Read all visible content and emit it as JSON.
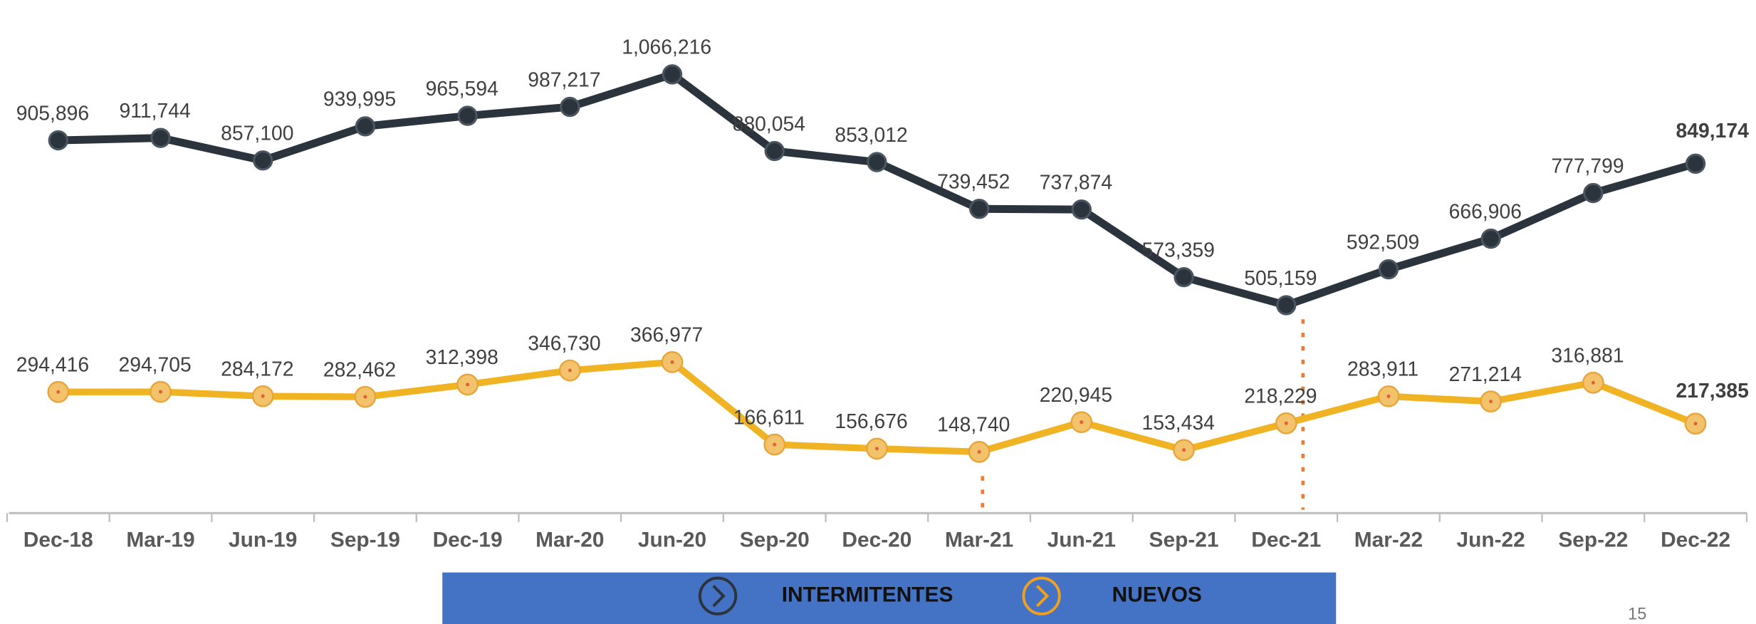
{
  "chart_data": {
    "type": "line",
    "categories": [
      "Dec-18",
      "Mar-19",
      "Jun-19",
      "Sep-19",
      "Dec-19",
      "Mar-20",
      "Jun-20",
      "Sep-20",
      "Dec-20",
      "Mar-21",
      "Jun-21",
      "Sep-21",
      "Dec-21",
      "Mar-22",
      "Jun-22",
      "Sep-22",
      "Dec-22"
    ],
    "series": [
      {
        "name": "INTERMITENTES",
        "color": "#2b333d",
        "values": [
          905896,
          911744,
          857100,
          939995,
          965594,
          987217,
          1066216,
          880054,
          853012,
          739452,
          737874,
          573359,
          505159,
          592509,
          666906,
          777799,
          849174
        ],
        "value_labels": [
          "905,896",
          "911,744",
          "857,100",
          "939,995",
          "965,594",
          "987,217",
          "1,066,216",
          "880,054",
          "853,012",
          "739,452",
          "737,874",
          "573,359",
          "505,159",
          "592,509",
          "666,906",
          "777,799",
          "849,174"
        ]
      },
      {
        "name": "NUEVOS",
        "color": "#f0b323",
        "values": [
          294416,
          294705,
          284172,
          282462,
          312398,
          346730,
          366977,
          166611,
          156676,
          148740,
          220945,
          153434,
          218229,
          283911,
          271214,
          316881,
          217385
        ],
        "value_labels": [
          "294,416",
          "294,705",
          "284,172",
          "282,462",
          "312,398",
          "346,730",
          "366,977",
          "166,611",
          "156,676",
          "148,740",
          "220,945",
          "153,434",
          "218,229",
          "283,911",
          "271,214",
          "316,881",
          "217,385"
        ]
      }
    ],
    "ylim": [
      0,
      1100000
    ],
    "page_number": "15"
  }
}
